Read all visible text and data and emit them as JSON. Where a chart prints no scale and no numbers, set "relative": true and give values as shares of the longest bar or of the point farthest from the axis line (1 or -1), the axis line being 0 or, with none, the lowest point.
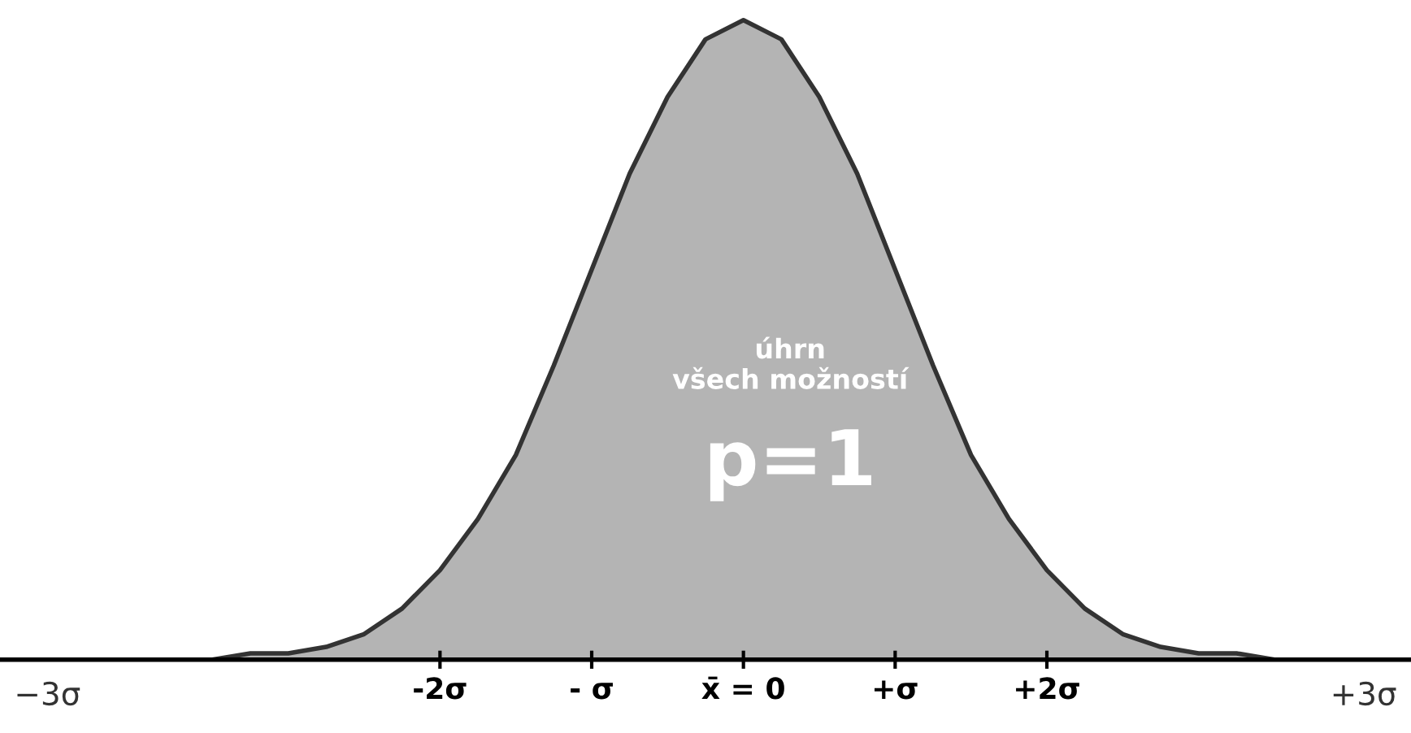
{
  "chart_data": {
    "type": "area",
    "relative": true,
    "x": [
      -4.4,
      -4,
      -3.75,
      -3.5,
      -3.25,
      -3,
      -2.75,
      -2.5,
      -2.25,
      -2,
      -1.75,
      -1.5,
      -1.25,
      -1,
      -0.75,
      -0.5,
      -0.25,
      0,
      0.25,
      0.5,
      0.75,
      1,
      1.25,
      1.5,
      1.75,
      2,
      2.25,
      2.5,
      2.75,
      3,
      3.25,
      3.5,
      3.75,
      4
    ],
    "series": [
      {
        "color": "#b4b4b4",
        "values": [
          0,
          0,
          0,
          0,
          0.01,
          0.01,
          0.02,
          0.04,
          0.08,
          0.14,
          0.22,
          0.32,
          0.46,
          0.61,
          0.76,
          0.88,
          0.97,
          1,
          0.97,
          0.88,
          0.76,
          0.61,
          0.46,
          0.32,
          0.22,
          0.14,
          0.08,
          0.04,
          0.02,
          0.01,
          0.01,
          0,
          0,
          0
        ]
      }
    ],
    "xlim": [
      -4.9,
      4.4
    ],
    "xticks": [
      {
        "value": -2,
        "label": "-2σ"
      },
      {
        "value": -1,
        "label": "- σ"
      },
      {
        "value": 0,
        "label": "x̄ = 0"
      },
      {
        "value": 1,
        "label": "+σ"
      },
      {
        "value": 2,
        "label": "+2σ"
      }
    ],
    "annotations": [
      "úhrn\nvšech možností",
      "p=1",
      "−3σ",
      "+3σ"
    ],
    "grid": false,
    "legend": false
  }
}
